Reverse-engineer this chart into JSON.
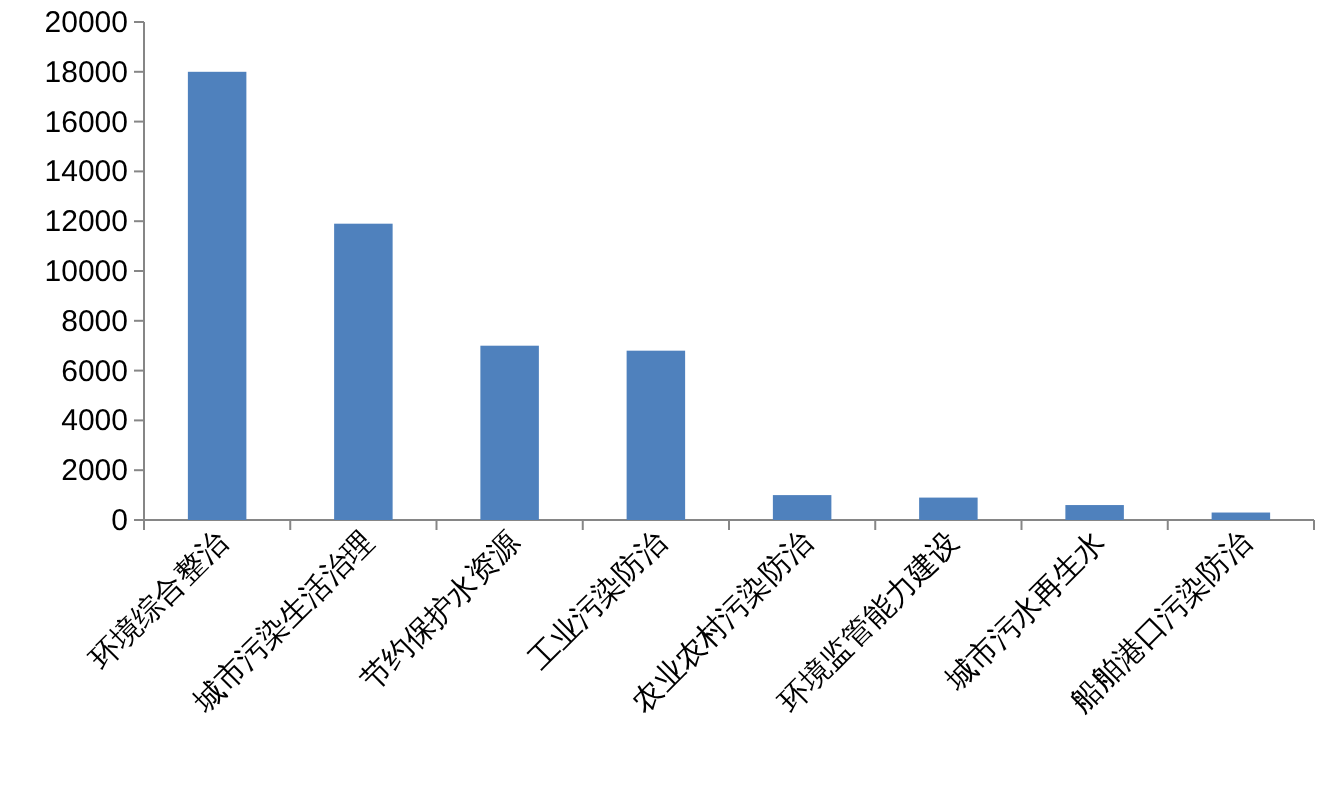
{
  "chart_data": {
    "type": "bar",
    "categories": [
      "环境综合整治",
      "城市污染生活治理",
      "节约保护水资源",
      "工业污染防治",
      "农业农村污染防治",
      "环境监管能力建设",
      "城市污水再生水",
      "船舶港口污染防治"
    ],
    "values": [
      18000,
      11900,
      7000,
      6800,
      1000,
      900,
      600,
      300
    ],
    "color": "#4f81bd",
    "ylim": [
      0,
      20000
    ],
    "yticks": [
      0,
      2000,
      4000,
      6000,
      8000,
      10000,
      12000,
      14000,
      16000,
      18000,
      20000
    ],
    "grid": false
  }
}
